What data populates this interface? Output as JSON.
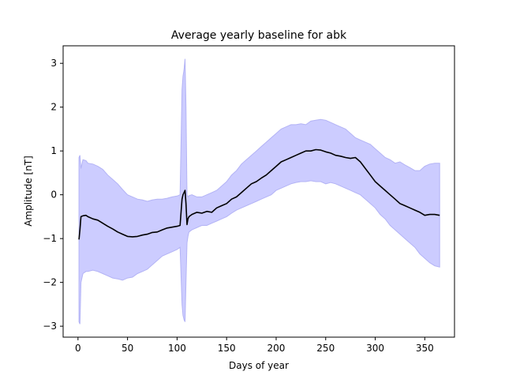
{
  "chart_data": {
    "type": "line",
    "title": "Average yearly baseline for abk",
    "xlabel": "Days of year",
    "ylabel": "Amplitude [nT]",
    "xlim": [
      -15,
      380
    ],
    "ylim": [
      -3.25,
      3.4
    ],
    "xticks": [
      0,
      50,
      100,
      150,
      200,
      250,
      300,
      350
    ],
    "xtick_labels": [
      "0",
      "50",
      "100",
      "150",
      "200",
      "250",
      "300",
      "350"
    ],
    "yticks": [
      -3,
      -2,
      -1,
      0,
      1,
      2,
      3
    ],
    "ytick_labels": [
      "−3",
      "−2",
      "−1",
      "0",
      "1",
      "2",
      "3"
    ],
    "grid": false,
    "legend": "none",
    "colors": {
      "mean_line": "#000000",
      "band_fill": "#ccccff",
      "band_edge": "#b3b3f5"
    },
    "series": [
      {
        "x": [
          1,
          2,
          3,
          5,
          8,
          10,
          15,
          20,
          25,
          30,
          35,
          40,
          45,
          50,
          55,
          60,
          65,
          70,
          75,
          80,
          85,
          90,
          95,
          100,
          103,
          105,
          106,
          107,
          108,
          109,
          110,
          111,
          112,
          115,
          120,
          125,
          130,
          135,
          140,
          145,
          150,
          155,
          160,
          165,
          170,
          175,
          180,
          185,
          190,
          195,
          200,
          205,
          210,
          215,
          220,
          225,
          230,
          235,
          240,
          245,
          250,
          255,
          260,
          265,
          270,
          275,
          280,
          285,
          290,
          295,
          300,
          305,
          310,
          315,
          320,
          325,
          330,
          335,
          340,
          345,
          350,
          355,
          360,
          365
        ],
        "values": [
          -1.02,
          -0.8,
          -0.5,
          -0.48,
          -0.47,
          -0.5,
          -0.55,
          -0.58,
          -0.65,
          -0.72,
          -0.78,
          -0.85,
          -0.9,
          -0.95,
          -0.96,
          -0.95,
          -0.92,
          -0.9,
          -0.86,
          -0.85,
          -0.8,
          -0.76,
          -0.74,
          -0.72,
          -0.7,
          -0.1,
          0.0,
          0.05,
          0.1,
          -0.2,
          -0.68,
          -0.55,
          -0.5,
          -0.45,
          -0.4,
          -0.42,
          -0.38,
          -0.4,
          -0.3,
          -0.25,
          -0.2,
          -0.1,
          -0.05,
          0.05,
          0.15,
          0.25,
          0.3,
          0.38,
          0.45,
          0.55,
          0.65,
          0.75,
          0.8,
          0.85,
          0.9,
          0.95,
          1.0,
          1.0,
          1.03,
          1.02,
          0.98,
          0.95,
          0.9,
          0.88,
          0.85,
          0.83,
          0.85,
          0.75,
          0.6,
          0.45,
          0.3,
          0.2,
          0.1,
          0.0,
          -0.1,
          -0.2,
          -0.25,
          -0.3,
          -0.35,
          -0.4,
          -0.47,
          -0.45,
          -0.45,
          -0.47
        ]
      },
      {
        "x": [
          1,
          2,
          3,
          5,
          8,
          10,
          15,
          20,
          25,
          30,
          35,
          40,
          45,
          50,
          55,
          60,
          65,
          70,
          75,
          80,
          85,
          90,
          95,
          100,
          103,
          105,
          106,
          107,
          108,
          109,
          110,
          111,
          112,
          115,
          120,
          125,
          130,
          135,
          140,
          145,
          150,
          155,
          160,
          165,
          170,
          175,
          180,
          185,
          190,
          195,
          200,
          205,
          210,
          215,
          220,
          225,
          230,
          235,
          240,
          245,
          250,
          255,
          260,
          265,
          270,
          275,
          280,
          285,
          290,
          295,
          300,
          305,
          310,
          315,
          320,
          325,
          330,
          335,
          340,
          345,
          350,
          355,
          360,
          365
        ],
        "values": [
          0.85,
          0.9,
          0.6,
          0.8,
          0.78,
          0.72,
          0.7,
          0.65,
          0.58,
          0.45,
          0.35,
          0.25,
          0.12,
          0.0,
          -0.05,
          -0.1,
          -0.12,
          -0.15,
          -0.12,
          -0.1,
          -0.1,
          -0.08,
          -0.05,
          -0.03,
          0.0,
          2.4,
          2.7,
          2.85,
          3.1,
          2.0,
          0.0,
          -0.05,
          -0.02,
          0.0,
          -0.05,
          -0.05,
          0.0,
          0.05,
          0.1,
          0.2,
          0.3,
          0.45,
          0.55,
          0.7,
          0.8,
          0.9,
          1.0,
          1.1,
          1.2,
          1.3,
          1.4,
          1.5,
          1.55,
          1.6,
          1.6,
          1.62,
          1.6,
          1.68,
          1.7,
          1.72,
          1.7,
          1.65,
          1.6,
          1.55,
          1.5,
          1.4,
          1.3,
          1.25,
          1.2,
          1.15,
          1.05,
          0.95,
          0.85,
          0.8,
          0.72,
          0.75,
          0.68,
          0.62,
          0.55,
          0.55,
          0.65,
          0.7,
          0.72,
          0.72
        ]
      },
      {
        "x": [
          1,
          2,
          3,
          5,
          8,
          10,
          15,
          20,
          25,
          30,
          35,
          40,
          45,
          50,
          55,
          60,
          65,
          70,
          75,
          80,
          85,
          90,
          95,
          100,
          103,
          105,
          106,
          107,
          108,
          109,
          110,
          111,
          112,
          115,
          120,
          125,
          130,
          135,
          140,
          145,
          150,
          155,
          160,
          165,
          170,
          175,
          180,
          185,
          190,
          195,
          200,
          205,
          210,
          215,
          220,
          225,
          230,
          235,
          240,
          245,
          250,
          255,
          260,
          265,
          270,
          275,
          280,
          285,
          290,
          295,
          300,
          305,
          310,
          315,
          320,
          325,
          330,
          335,
          340,
          345,
          350,
          355,
          360,
          365
        ],
        "values": [
          -2.9,
          -2.95,
          -2.0,
          -1.8,
          -1.75,
          -1.75,
          -1.72,
          -1.75,
          -1.8,
          -1.85,
          -1.9,
          -1.92,
          -1.95,
          -1.9,
          -1.88,
          -1.8,
          -1.75,
          -1.7,
          -1.6,
          -1.5,
          -1.4,
          -1.35,
          -1.3,
          -1.25,
          -1.2,
          -2.5,
          -2.75,
          -2.85,
          -2.9,
          -2.0,
          -1.1,
          -0.95,
          -0.85,
          -0.8,
          -0.75,
          -0.7,
          -0.7,
          -0.65,
          -0.6,
          -0.55,
          -0.5,
          -0.42,
          -0.35,
          -0.3,
          -0.25,
          -0.2,
          -0.15,
          -0.1,
          -0.05,
          0.0,
          0.1,
          0.15,
          0.2,
          0.25,
          0.28,
          0.3,
          0.3,
          0.32,
          0.3,
          0.3,
          0.25,
          0.28,
          0.25,
          0.2,
          0.15,
          0.1,
          0.05,
          0.0,
          -0.1,
          -0.2,
          -0.3,
          -0.45,
          -0.55,
          -0.7,
          -0.8,
          -0.9,
          -1.0,
          -1.1,
          -1.2,
          -1.35,
          -1.45,
          -1.55,
          -1.62,
          -1.65
        ]
      }
    ]
  }
}
